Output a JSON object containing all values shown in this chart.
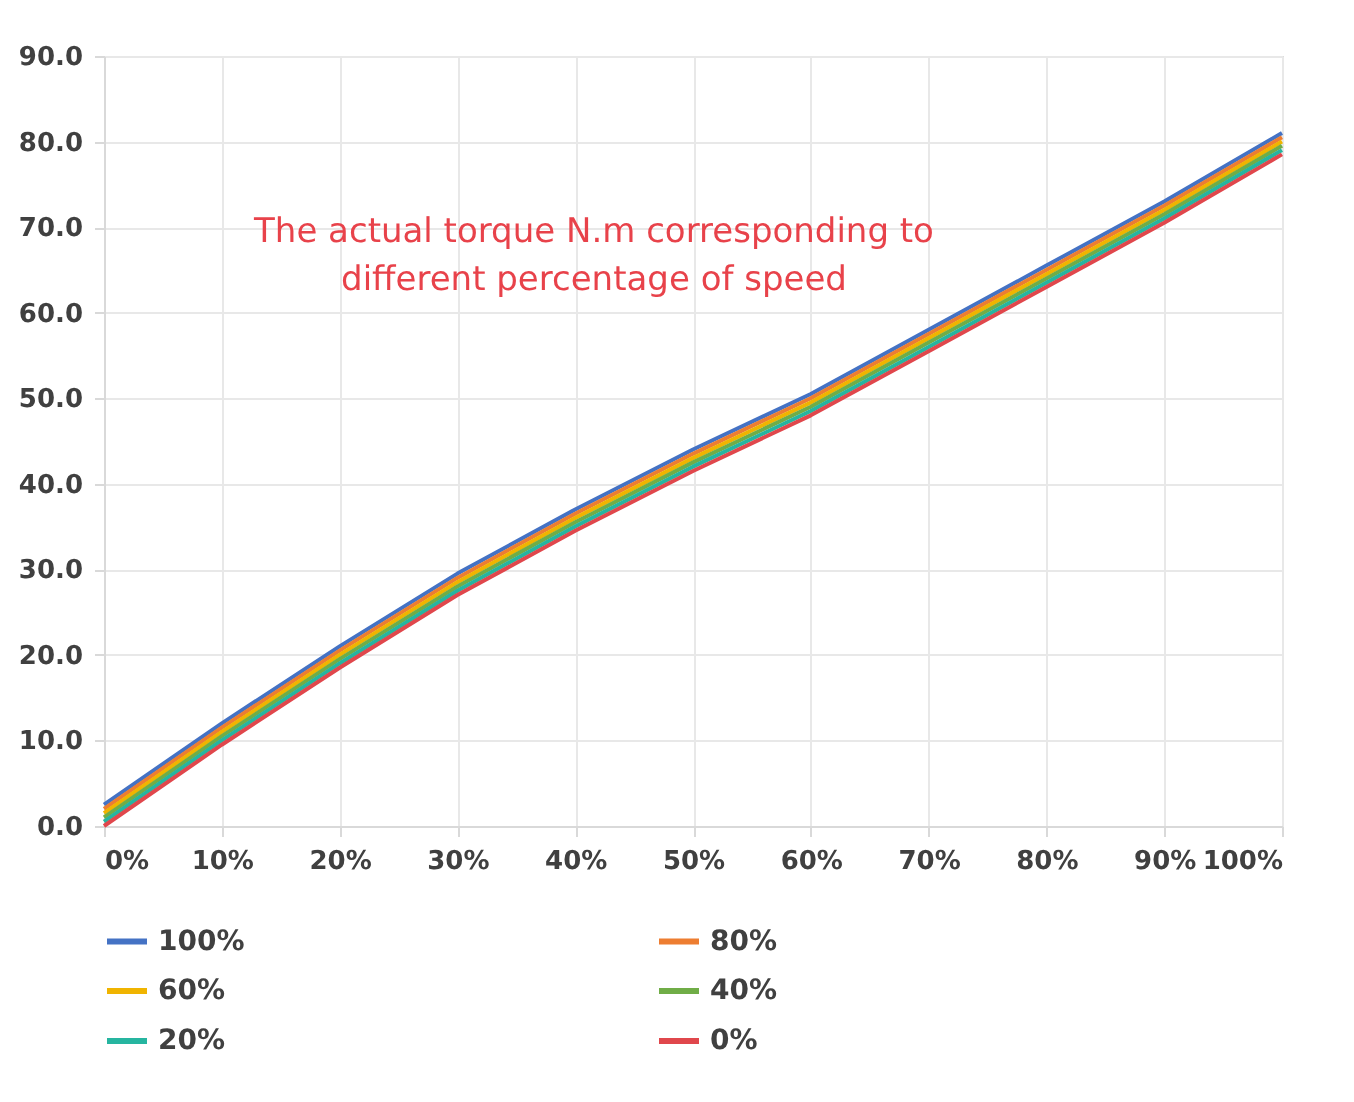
{
  "chart_data": {
    "type": "line",
    "x": [
      0,
      10,
      20,
      30,
      40,
      50,
      60,
      70,
      80,
      90,
      100
    ],
    "xlim": [
      0,
      100
    ],
    "xticks": [
      {
        "value": 0,
        "label": "0%"
      },
      {
        "value": 10,
        "label": "10%"
      },
      {
        "value": 20,
        "label": "20%"
      },
      {
        "value": 30,
        "label": "30%"
      },
      {
        "value": 40,
        "label": "40%"
      },
      {
        "value": 50,
        "label": "50%"
      },
      {
        "value": 60,
        "label": "60%"
      },
      {
        "value": 70,
        "label": "70%"
      },
      {
        "value": 80,
        "label": "80%"
      },
      {
        "value": 90,
        "label": "90%"
      },
      {
        "value": 100,
        "label": "100%"
      }
    ],
    "ylim": [
      0,
      90
    ],
    "yticks": [
      {
        "value": 0,
        "label": "0.0"
      },
      {
        "value": 10,
        "label": "10.0"
      },
      {
        "value": 20,
        "label": "20.0"
      },
      {
        "value": 30,
        "label": "30.0"
      },
      {
        "value": 40,
        "label": "40.0"
      },
      {
        "value": 50,
        "label": "50.0"
      },
      {
        "value": 60,
        "label": "60.0"
      },
      {
        "value": 70,
        "label": "70.0"
      },
      {
        "value": 80,
        "label": "80.0"
      },
      {
        "value": 90,
        "label": "90.0"
      }
    ],
    "series": [
      {
        "name": "100%",
        "color": "#4472c4",
        "values": [
          2.5,
          12,
          21,
          29.5,
          37,
          44,
          50.5,
          58,
          65.5,
          73,
          81
        ]
      },
      {
        "name": "80%",
        "color": "#ed7d31",
        "values": [
          2,
          11.5,
          20.5,
          29,
          36.5,
          43.5,
          50,
          57.5,
          65,
          72.5,
          80.5
        ]
      },
      {
        "name": "60%",
        "color": "#f0b400",
        "values": [
          1.5,
          11,
          20,
          28.5,
          36,
          43,
          49.5,
          57,
          64.5,
          72,
          80
        ]
      },
      {
        "name": "40%",
        "color": "#70ad47",
        "values": [
          1,
          10.5,
          19.5,
          28,
          35.5,
          42.5,
          49,
          56.5,
          64,
          71.5,
          79.5
        ]
      },
      {
        "name": "20%",
        "color": "#26b5a0",
        "values": [
          0.5,
          10,
          19,
          27.5,
          35,
          42,
          48.5,
          56,
          63.5,
          71,
          79
        ]
      },
      {
        "name": "0%",
        "color": "#e0474c",
        "values": [
          0,
          9.5,
          18.5,
          27,
          34.5,
          41.5,
          48,
          55.5,
          63,
          70.5,
          78.5
        ]
      }
    ],
    "annotations": [
      "The actual torque N.m corresponding to\ndifferent percentage of speed"
    ],
    "grid": true,
    "legend": "bottom",
    "marker": "none",
    "line_style": "solid"
  }
}
